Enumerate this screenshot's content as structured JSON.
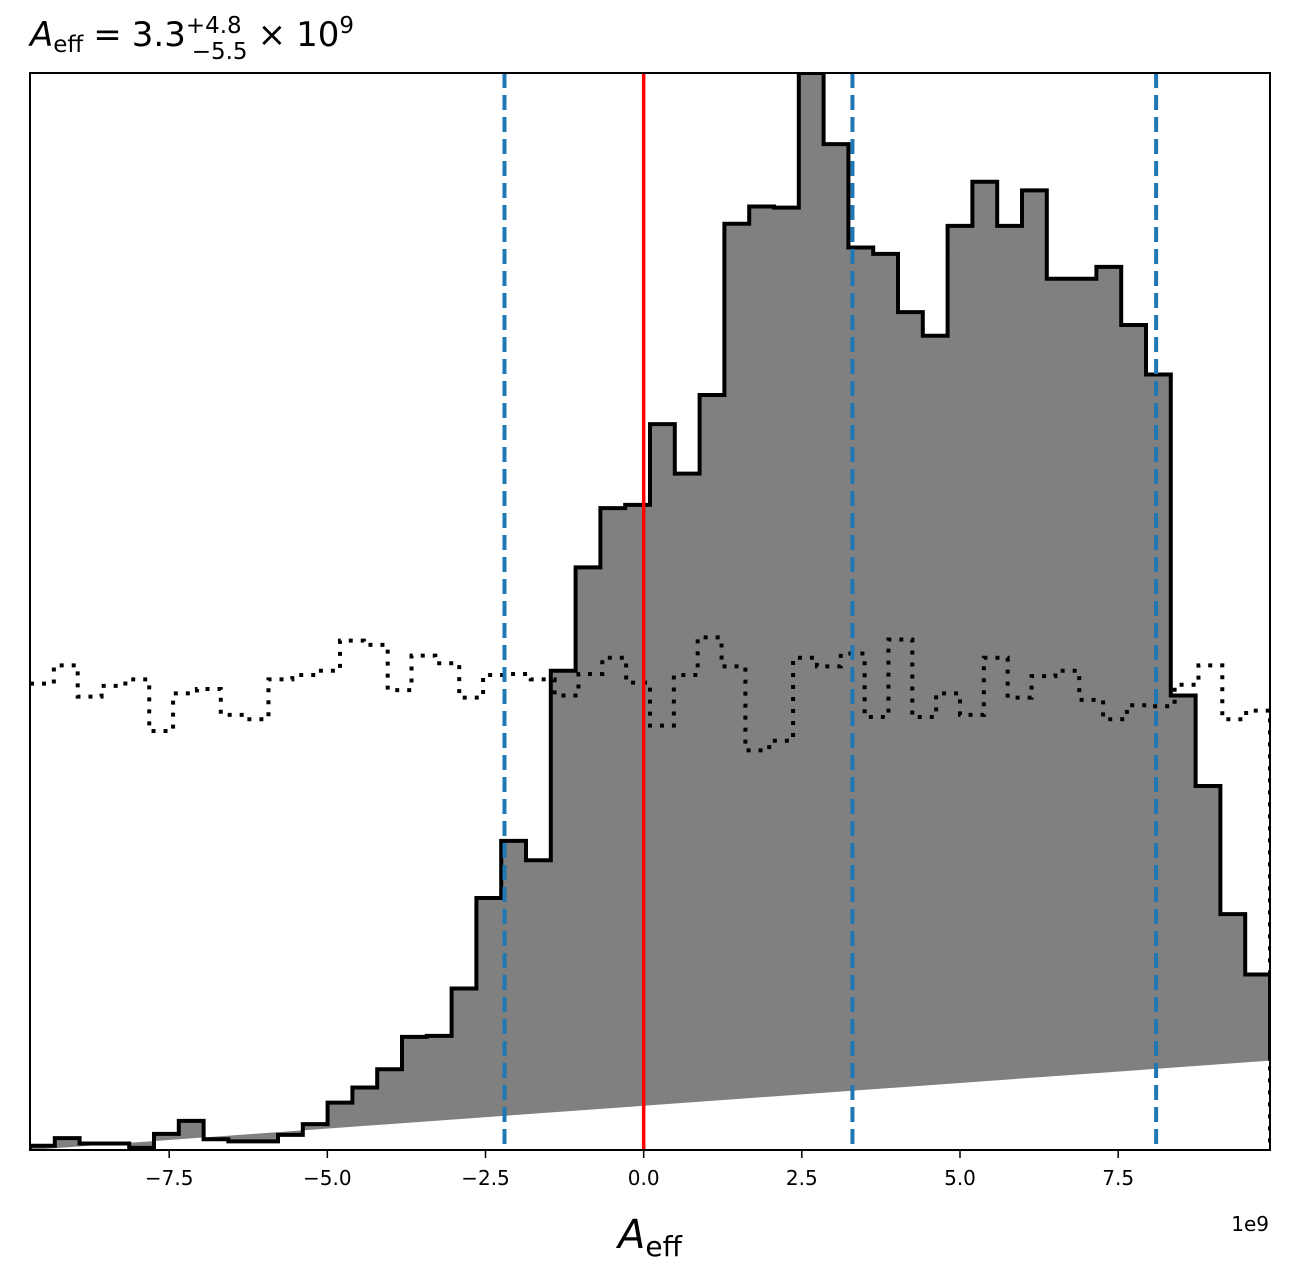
{
  "chart_data": {
    "type": "histogram",
    "title": {
      "base": "A",
      "base_sub": "eff",
      "equals": "=",
      "value": "3.3",
      "sup": "+4.8",
      "sub": "−5.5",
      "times": "×",
      "power_base": "10",
      "power_exp": "9"
    },
    "xlabel": {
      "base": "A",
      "sub": "eff"
    },
    "offset_label": "1e9",
    "xlim": [
      -9.7,
      9.9
    ],
    "ylim": [
      0,
      1.0
    ],
    "x_ticks": [
      -7.5,
      -5.0,
      -2.5,
      0.0,
      2.5,
      5.0,
      7.5
    ],
    "x_tick_labels": [
      "−7.5",
      "−5.0",
      "−2.5",
      "0.0",
      "2.5",
      "5.0",
      "7.5"
    ],
    "grid": false,
    "posterior": {
      "style": "filled step",
      "fill_color": "#808080",
      "edge_color": "#000000",
      "bin_edges": [
        -9.7,
        -9.308,
        -8.916,
        -8.524,
        -8.132,
        -7.74,
        -7.348,
        -6.956,
        -6.564,
        -6.172,
        -5.78,
        -5.388,
        -4.996,
        -4.604,
        -4.212,
        -3.82,
        -3.428,
        -3.036,
        -2.644,
        -2.252,
        -1.86,
        -1.468,
        -1.076,
        -0.684,
        -0.292,
        0.1,
        0.492,
        0.884,
        1.276,
        1.668,
        2.06,
        2.452,
        2.844,
        3.236,
        3.628,
        4.02,
        4.412,
        4.804,
        5.196,
        5.588,
        5.98,
        6.372,
        6.764,
        7.156,
        7.548,
        7.94,
        8.332,
        8.724,
        9.116,
        9.508,
        9.9
      ],
      "values": [
        0.004,
        0.011,
        0.006,
        0.006,
        0.002,
        0.015,
        0.027,
        0.01,
        0.008,
        0.008,
        0.014,
        0.024,
        0.044,
        0.058,
        0.075,
        0.105,
        0.106,
        0.15,
        0.234,
        0.287,
        0.269,
        0.445,
        0.541,
        0.596,
        0.599,
        0.674,
        0.628,
        0.701,
        0.86,
        0.876,
        0.875,
        1.0,
        0.934,
        0.838,
        0.832,
        0.778,
        0.756,
        0.858,
        0.899,
        0.858,
        0.891,
        0.809,
        0.809,
        0.82,
        0.766,
        0.72,
        0.422,
        0.338,
        0.219,
        0.163,
        0.083
      ]
    },
    "prior": {
      "style": "dotted step",
      "color": "#000000",
      "values": [
        0.433,
        0.45,
        0.421,
        0.431,
        0.437,
        0.389,
        0.424,
        0.428,
        0.404,
        0.4,
        0.437,
        0.441,
        0.445,
        0.473,
        0.469,
        0.427,
        0.459,
        0.452,
        0.42,
        0.441,
        0.442,
        0.437,
        0.422,
        0.442,
        0.457,
        0.434,
        0.394,
        0.441,
        0.476,
        0.449,
        0.371,
        0.38,
        0.457,
        0.449,
        0.461,
        0.402,
        0.474,
        0.402,
        0.424,
        0.404,
        0.457,
        0.42,
        0.44,
        0.445,
        0.418,
        0.4,
        0.413,
        0.412,
        0.432,
        0.45,
        0.4,
        0.408
      ]
    },
    "true_value": {
      "x": 0.0,
      "color": "#ff0000"
    },
    "quantiles": {
      "x": [
        -2.2,
        3.3,
        8.1
      ],
      "color": "#1f77b4",
      "style": "dashed"
    }
  }
}
